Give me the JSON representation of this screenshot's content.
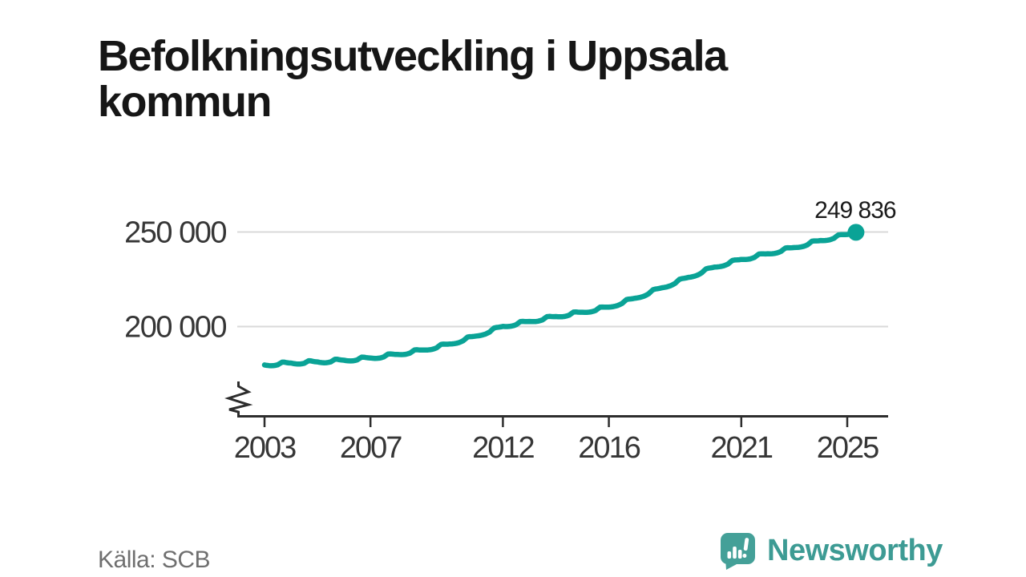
{
  "title": "Befolkningsutveckling i Uppsala kommun",
  "footer": {
    "source": "Källa: SCB",
    "brand": "Newsworthy"
  },
  "colors": {
    "line": "#0aa396",
    "marker": "#0aa396",
    "grid": "#d9d9d9",
    "axis": "#2d2d2d",
    "axis_text": "#363636",
    "title_text": "#161616",
    "data_label_text": "#1a1a1a",
    "source_text": "#6f6f6f",
    "brand_teal": "#3d9b94",
    "brand_icon_teal": "#44a098",
    "background": "#ffffff"
  },
  "chart_data": {
    "type": "line",
    "title": "Befolkningsutveckling i Uppsala kommun",
    "series": [
      {
        "name": "Befolkning",
        "x": [
          2003,
          2004,
          2005,
          2006,
          2007,
          2008,
          2009,
          2010,
          2011,
          2012,
          2013,
          2014,
          2015,
          2016,
          2017,
          2018,
          2019,
          2020,
          2021,
          2022,
          2023,
          2024,
          2025
        ],
        "values": [
          179700,
          180700,
          181300,
          182200,
          183400,
          185300,
          187600,
          190800,
          195000,
          200100,
          202700,
          205300,
          207600,
          210300,
          215000,
          220500,
          226000,
          231500,
          235500,
          238500,
          241800,
          245500,
          248700
        ]
      }
    ],
    "latest_point": {
      "x": 2025.33,
      "value": 249836,
      "label": "249 836"
    },
    "x_ticks": [
      {
        "value": 2003,
        "label": "2003"
      },
      {
        "value": 2007,
        "label": "2007"
      },
      {
        "value": 2012,
        "label": "2012"
      },
      {
        "value": 2016,
        "label": "2016"
      },
      {
        "value": 2021,
        "label": "2021"
      },
      {
        "value": 2025,
        "label": "2025"
      }
    ],
    "y_ticks": [
      {
        "value": 250000,
        "label": "250 000"
      },
      {
        "value": 200000,
        "label": "200 000"
      }
    ],
    "xlim": [
      2003,
      2025.5
    ],
    "ylim": [
      178000,
      255000
    ],
    "grid": "horizontal-only",
    "legend": "none",
    "y_axis_break": true,
    "style": {
      "monthly_texture": true,
      "end_marker": true
    }
  }
}
